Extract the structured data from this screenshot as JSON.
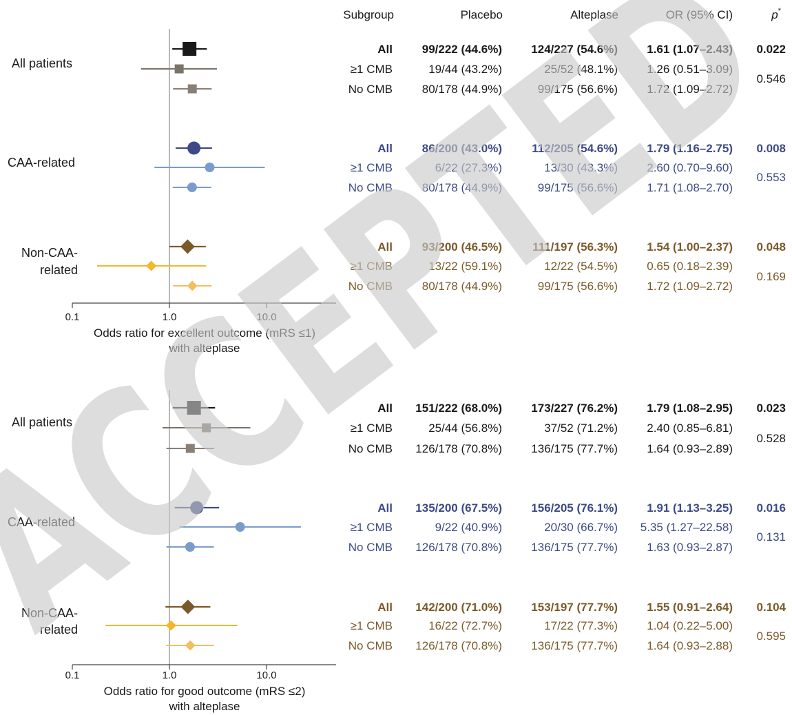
{
  "headers": {
    "subgroup": "Subgroup",
    "placebo": "Placebo",
    "alteplase": "Alteplase",
    "or": "OR (95% CI)",
    "p": "p",
    "p_sup": "*"
  },
  "watermark": "ACCEPTED",
  "colors": {
    "all_patients": [
      "#1a1a1a",
      "#7b7269",
      "#8a7f76"
    ],
    "caa": [
      "#3d4a85",
      "#7b9ccb",
      "#7b9ccb"
    ],
    "noncaa": [
      "#7a5a2a",
      "#f4b62a",
      "#f0c060"
    ],
    "axis": "#444444"
  },
  "chart_data": [
    {
      "type": "forest",
      "xscale": "log",
      "xlim": [
        0.1,
        50
      ],
      "ticks": [
        "0.1",
        "1.0",
        "10.0"
      ],
      "reference_line": 1.0,
      "xlabel": [
        "Odds ratio for excellent outcome (mRS ≤1)",
        "with alteplase"
      ],
      "groups": [
        {
          "name": [
            "All patients"
          ],
          "marker": "square",
          "color_key": "all_patients",
          "p_main": "0.022",
          "p_inter": "0.546",
          "rows": [
            {
              "sub": "All",
              "placebo": "99/222 (44.6%)",
              "alteplase": "124/227 (54.6%)",
              "or_text": "1.61 (1.07–2.43)",
              "or": 1.61,
              "lo": 1.07,
              "hi": 2.43
            },
            {
              "sub": "≥1 CMB",
              "placebo": "19/44 (43.2%)",
              "alteplase": "25/52 (48.1%)",
              "or_text": "1.26 (0.51–3.09)",
              "or": 1.26,
              "lo": 0.51,
              "hi": 3.09
            },
            {
              "sub": "No CMB",
              "placebo": "80/178 (44.9%)",
              "alteplase": "99/175 (56.6%)",
              "or_text": "1.72 (1.09–2.72)",
              "or": 1.72,
              "lo": 1.09,
              "hi": 2.72
            }
          ]
        },
        {
          "name": [
            "CAA-related"
          ],
          "marker": "circle",
          "color_key": "caa",
          "p_main": "0.008",
          "p_inter": "0.553",
          "rows": [
            {
              "sub": "All",
              "placebo": "86/200 (43.0%)",
              "alteplase": "112/205 (54.6%)",
              "or_text": "1.79 (1.16–2.75)",
              "or": 1.79,
              "lo": 1.16,
              "hi": 2.75
            },
            {
              "sub": "≥1 CMB",
              "placebo": "6/22 (27.3%)",
              "alteplase": "13/30 (43.3%)",
              "or_text": "2.60 (0.70–9.60)",
              "or": 2.6,
              "lo": 0.7,
              "hi": 9.6
            },
            {
              "sub": "No CMB",
              "placebo": "80/178 (44.9%)",
              "alteplase": "99/175 (56.6%)",
              "or_text": "1.71 (1.08–2.70)",
              "or": 1.71,
              "lo": 1.08,
              "hi": 2.7
            }
          ]
        },
        {
          "name": [
            "Non-CAA-",
            "related"
          ],
          "marker": "diamond",
          "color_key": "noncaa",
          "p_main": "0.048",
          "p_inter": "0.169",
          "rows": [
            {
              "sub": "All",
              "placebo": "93/200 (46.5%)",
              "alteplase": "111/197 (56.3%)",
              "or_text": "1.54 (1.00–2.37)",
              "or": 1.54,
              "lo": 1.0,
              "hi": 2.37
            },
            {
              "sub": "≥1 CMB",
              "placebo": "13/22 (59.1%)",
              "alteplase": "12/22 (54.5%)",
              "or_text": "0.65 (0.18–2.39)",
              "or": 0.65,
              "lo": 0.18,
              "hi": 2.39
            },
            {
              "sub": "No CMB",
              "placebo": "80/178 (44.9%)",
              "alteplase": "99/175 (56.6%)",
              "or_text": "1.72 (1.09–2.72)",
              "or": 1.72,
              "lo": 1.09,
              "hi": 2.72
            }
          ]
        }
      ]
    },
    {
      "type": "forest",
      "xscale": "log",
      "xlim": [
        0.1,
        50
      ],
      "ticks": [
        "0.1",
        "1.0",
        "10.0"
      ],
      "reference_line": 1.0,
      "xlabel": [
        "Odds ratio for good outcome (mRS ≤2)",
        "with alteplase"
      ],
      "groups": [
        {
          "name": [
            "All patients"
          ],
          "marker": "square",
          "color_key": "all_patients",
          "p_main": "0.023",
          "p_inter": "0.528",
          "rows": [
            {
              "sub": "All",
              "placebo": "151/222 (68.0%)",
              "alteplase": "173/227 (76.2%)",
              "or_text": "1.79 (1.08–2.95)",
              "or": 1.79,
              "lo": 1.08,
              "hi": 2.95
            },
            {
              "sub": "≥1 CMB",
              "placebo": "25/44 (56.8%)",
              "alteplase": "37/52 (71.2%)",
              "or_text": "2.40 (0.85–6.81)",
              "or": 2.4,
              "lo": 0.85,
              "hi": 6.81
            },
            {
              "sub": "No CMB",
              "placebo": "126/178 (70.8%)",
              "alteplase": "136/175 (77.7%)",
              "or_text": "1.64 (0.93–2.89)",
              "or": 1.64,
              "lo": 0.93,
              "hi": 2.89
            }
          ]
        },
        {
          "name": [
            "CAA-related"
          ],
          "marker": "circle",
          "color_key": "caa",
          "p_main": "0.016",
          "p_inter": "0.131",
          "rows": [
            {
              "sub": "All",
              "placebo": "135/200 (67.5%)",
              "alteplase": "156/205 (76.1%)",
              "or_text": "1.91 (1.13–3.25)",
              "or": 1.91,
              "lo": 1.13,
              "hi": 3.25
            },
            {
              "sub": "≥1 CMB",
              "placebo": "9/22 (40.9%)",
              "alteplase": "20/30 (66.7%)",
              "or_text": "5.35 (1.27–22.58)",
              "or": 5.35,
              "lo": 1.27,
              "hi": 22.58
            },
            {
              "sub": "No CMB",
              "placebo": "126/178 (70.8%)",
              "alteplase": "136/175 (77.7%)",
              "or_text": "1.63 (0.93–2.87)",
              "or": 1.63,
              "lo": 0.93,
              "hi": 2.87
            }
          ]
        },
        {
          "name": [
            "Non-CAA-",
            "related"
          ],
          "marker": "diamond",
          "color_key": "noncaa",
          "p_main": "0.104",
          "p_inter": "0.595",
          "rows": [
            {
              "sub": "All",
              "placebo": "142/200 (71.0%)",
              "alteplase": "153/197 (77.7%)",
              "or_text": "1.55 (0.91–2.64)",
              "or": 1.55,
              "lo": 0.91,
              "hi": 2.64
            },
            {
              "sub": "≥1 CMB",
              "placebo": "16/22 (72.7%)",
              "alteplase": "17/22 (77.3%)",
              "or_text": "1.04 (0.22–5.00)",
              "or": 1.04,
              "lo": 0.22,
              "hi": 5.0
            },
            {
              "sub": "No CMB",
              "placebo": "126/178 (70.8%)",
              "alteplase": "136/175 (77.7%)",
              "or_text": "1.64 (0.93–2.88)",
              "or": 1.64,
              "lo": 0.93,
              "hi": 2.88
            }
          ]
        }
      ]
    }
  ]
}
